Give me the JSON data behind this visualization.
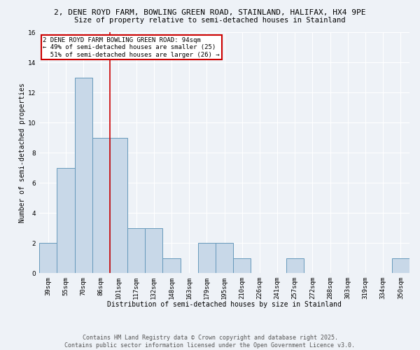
{
  "title_line1": "2, DENE ROYD FARM, BOWLING GREEN ROAD, STAINLAND, HALIFAX, HX4 9PE",
  "title_line2": "Size of property relative to semi-detached houses in Stainland",
  "xlabel": "Distribution of semi-detached houses by size in Stainland",
  "ylabel": "Number of semi-detached properties",
  "categories": [
    "39sqm",
    "55sqm",
    "70sqm",
    "86sqm",
    "101sqm",
    "117sqm",
    "132sqm",
    "148sqm",
    "163sqm",
    "179sqm",
    "195sqm",
    "210sqm",
    "226sqm",
    "241sqm",
    "257sqm",
    "272sqm",
    "288sqm",
    "303sqm",
    "319sqm",
    "334sqm",
    "350sqm"
  ],
  "values": [
    2,
    7,
    13,
    9,
    9,
    3,
    3,
    1,
    0,
    2,
    2,
    1,
    0,
    0,
    1,
    0,
    0,
    0,
    0,
    0,
    1
  ],
  "bar_color": "#c8d8e8",
  "bar_edge_color": "#6699bb",
  "ylim": [
    0,
    16
  ],
  "yticks": [
    0,
    2,
    4,
    6,
    8,
    10,
    12,
    14,
    16
  ],
  "red_line_x": 3.5,
  "annotation_text_line1": "2 DENE ROYD FARM BOWLING GREEN ROAD: 94sqm",
  "annotation_text_line2": "← 49% of semi-detached houses are smaller (25)",
  "annotation_text_line3": "  51% of semi-detached houses are larger (26) →",
  "footer_line1": "Contains HM Land Registry data © Crown copyright and database right 2025.",
  "footer_line2": "Contains public sector information licensed under the Open Government Licence v3.0.",
  "background_color": "#eef2f7",
  "plot_background_color": "#eef2f7",
  "grid_color": "#ffffff",
  "annotation_box_color": "#ffffff",
  "annotation_box_edge_color": "#cc0000",
  "red_line_color": "#cc0000",
  "title_fontsize": 8,
  "subtitle_fontsize": 7.5,
  "axis_label_fontsize": 7,
  "tick_fontsize": 6.5,
  "annotation_fontsize": 6.5,
  "footer_fontsize": 6
}
